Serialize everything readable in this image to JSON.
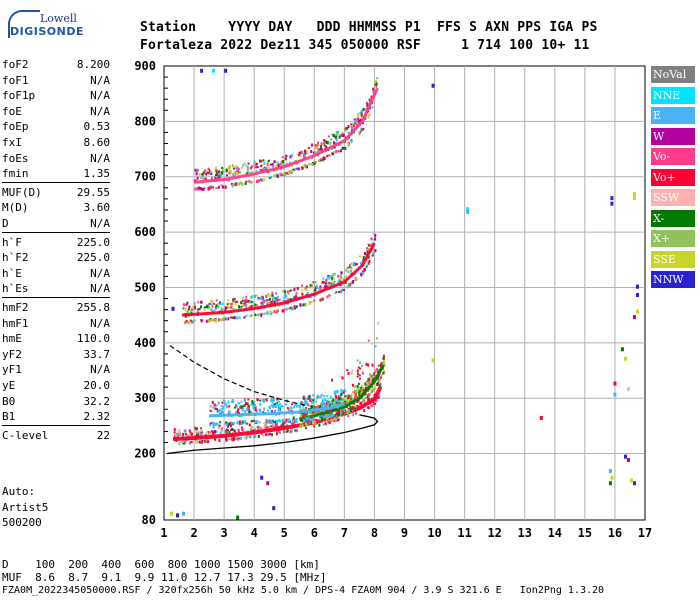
{
  "logo": {
    "line1": "Lowell",
    "line2": "DIGISONDE"
  },
  "header": {
    "labels": [
      "Station",
      "YYYY",
      "DAY",
      "DDD",
      "HHMMSS",
      "P1",
      "FFS",
      "S",
      "AXN",
      "PPS",
      "IGA",
      "PS"
    ],
    "values": [
      "Fortaleza",
      "2022",
      "Dez11",
      "345",
      "050000",
      "RSF",
      "",
      "1",
      "714",
      "100",
      "10+",
      "11"
    ],
    "line1": "Station    YYYY DAY   DDD HHMMSS P1  FFS S AXN PPS IGA PS",
    "line2": "Fortaleza 2022 Dez11 345 050000 RSF     1 714 100 10+ 11"
  },
  "params": [
    {
      "label": "foF2",
      "value": "8.200"
    },
    {
      "label": "foF1",
      "value": "N/A"
    },
    {
      "label": "foF1p",
      "value": "N/A"
    },
    {
      "label": "foE",
      "value": "N/A"
    },
    {
      "label": "foEp",
      "value": "0.53"
    },
    {
      "label": "fxI",
      "value": "8.60"
    },
    {
      "label": "foEs",
      "value": "N/A"
    },
    {
      "label": "fmin",
      "value": "1.35"
    },
    {
      "label": "MUF(D)",
      "value": "29.55"
    },
    {
      "label": "M(D)",
      "value": "3.60"
    },
    {
      "label": "D",
      "value": "N/A"
    },
    {
      "label": "h`F",
      "value": "225.0"
    },
    {
      "label": "h`F2",
      "value": "225.0"
    },
    {
      "label": "h`E",
      "value": "N/A"
    },
    {
      "label": "h`Es",
      "value": "N/A"
    },
    {
      "label": "hmF2",
      "value": "255.8"
    },
    {
      "label": "hmF1",
      "value": "N/A"
    },
    {
      "label": "hmE",
      "value": "110.0"
    },
    {
      "label": "yF2",
      "value": "33.7"
    },
    {
      "label": "yF1",
      "value": "N/A"
    },
    {
      "label": "yE",
      "value": "20.0"
    },
    {
      "label": "B0",
      "value": "32.2"
    },
    {
      "label": "B1",
      "value": "2.32"
    },
    {
      "label": "C-level",
      "value": "22"
    }
  ],
  "auto": {
    "line1": "Auto:",
    "line2": "Artist5",
    "line3": "500200"
  },
  "legend": [
    {
      "label": "NoVal",
      "color": "#808080"
    },
    {
      "label": "NNE",
      "color": "#00e5ff"
    },
    {
      "label": "E",
      "color": "#4ab2f5"
    },
    {
      "label": "W",
      "color": "#b4009e"
    },
    {
      "label": "Vo-",
      "color": "#ff3c8c"
    },
    {
      "label": "Vo+",
      "color": "#ff0033"
    },
    {
      "label": "SSW",
      "color": "#ffb0b0"
    },
    {
      "label": "X-",
      "color": "#007a00"
    },
    {
      "label": "X+",
      "color": "#8fc25a"
    },
    {
      "label": "SSE",
      "color": "#c8d42c"
    },
    {
      "label": "NNW",
      "color": "#2a22cc"
    }
  ],
  "bottom": {
    "d_line": "D    100  200  400  600  800 1000 1500 3000 [km]",
    "muf_line": "MUF  8.6  8.7  9.1  9.9 11.0 12.7 17.3 29.5 [MHz]",
    "footer": "FZA0M_2022345050000.RSF / 320fx256h 50 kHz 5.0 km / DPS-4 FZA0M 904 / 3.9 S 321.6 E   Ion2Png 1.3.20"
  },
  "chart_data": {
    "type": "scatter",
    "title": "",
    "xlabel": "",
    "ylabel": "",
    "xlim": [
      1,
      17
    ],
    "ylim": [
      80,
      900
    ],
    "x_ticks": [
      "1",
      "2",
      "3",
      "4",
      "5",
      "6",
      "7",
      "8",
      "9",
      "10",
      "11",
      "12",
      "13",
      "14",
      "15",
      "16",
      "17"
    ],
    "y_ticks": [
      "80",
      "200",
      "300",
      "400",
      "500",
      "600",
      "700",
      "800",
      "900"
    ],
    "grid": true,
    "traces": [
      {
        "name": "Vo+",
        "color": "#ff0033",
        "x": [
          1.3,
          2.0,
          3.0,
          4.0,
          5.0,
          6.0,
          7.0,
          7.5,
          8.0,
          8.2
        ],
        "y": [
          226,
          228,
          232,
          238,
          246,
          256,
          272,
          282,
          298,
          320
        ]
      },
      {
        "name": "X-",
        "color": "#007a00",
        "x": [
          5.5,
          6.0,
          7.0,
          7.5,
          8.0,
          8.3
        ],
        "y": [
          262,
          268,
          284,
          300,
          330,
          360
        ]
      },
      {
        "name": "E",
        "color": "#4ab2f5",
        "x": [
          2.5,
          3.5,
          4.5,
          5.5,
          6.5,
          7.0
        ],
        "y": [
          268,
          270,
          272,
          275,
          282,
          290
        ]
      },
      {
        "name": "Vo+",
        "color": "#ff0033",
        "x": [
          1.6,
          3.0,
          4.0,
          5.0,
          6.0,
          7.0,
          7.6,
          8.0
        ],
        "y": [
          450,
          455,
          462,
          472,
          488,
          510,
          540,
          580
        ]
      },
      {
        "name": "Vo-",
        "color": "#ff3c8c",
        "x": [
          2.0,
          3.0,
          4.0,
          5.0,
          6.0,
          7.0,
          7.6,
          8.1
        ],
        "y": [
          690,
          695,
          705,
          718,
          738,
          765,
          800,
          860
        ]
      }
    ],
    "profile_x": [
      1.1,
      2.0,
      3.0,
      4.0,
      5.0,
      6.0,
      7.0,
      7.6,
      8.0,
      8.1,
      8.0,
      7.5
    ],
    "profile_y": [
      200,
      206,
      210,
      214,
      220,
      228,
      238,
      246,
      252,
      258,
      264,
      270
    ],
    "profile_dashed_x": [
      1.2,
      2.0,
      3.0,
      4.0,
      5.0,
      5.8
    ],
    "profile_dashed_y": [
      395,
      365,
      335,
      312,
      296,
      286
    ]
  }
}
